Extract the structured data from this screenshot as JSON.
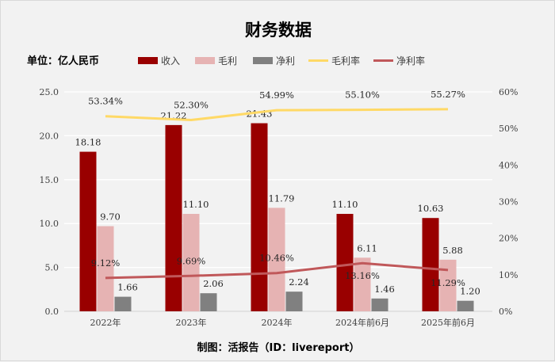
{
  "chart_data": {
    "type": "bar",
    "title": "财务数据",
    "unit_label": "单位：亿人民币",
    "footer": "制图：活报告（ID：livereport）",
    "categories": [
      "2022年",
      "2023年",
      "2024年",
      "2024年前6月",
      "2025年前6月"
    ],
    "left_axis": {
      "range": [
        0,
        25
      ],
      "ticks": [
        "0.0",
        "5.0",
        "10.0",
        "15.0",
        "20.0",
        "25.0"
      ]
    },
    "right_axis": {
      "range": [
        0,
        60
      ],
      "ticks": [
        "0%",
        "10%",
        "20%",
        "30%",
        "40%",
        "50%",
        "60%"
      ]
    },
    "grid": true,
    "legend_position": "top",
    "bar_series": [
      {
        "name": "收入",
        "color": "#990000",
        "values": [
          18.18,
          21.22,
          21.43,
          11.1,
          10.63
        ],
        "labels": [
          "18.18",
          "21.22",
          "21.43",
          "11.10",
          "10.63"
        ]
      },
      {
        "name": "毛利",
        "color": "#e6b3b3",
        "values": [
          9.7,
          11.1,
          11.79,
          6.11,
          5.88
        ],
        "labels": [
          "9.70",
          "11.10",
          "11.79",
          "6.11",
          "5.88"
        ]
      },
      {
        "name": "净利",
        "color": "#808080",
        "values": [
          1.66,
          2.06,
          2.24,
          1.46,
          1.2
        ],
        "labels": [
          "1.66",
          "2.06",
          "2.24",
          "1.46",
          "1.20"
        ]
      }
    ],
    "line_series": [
      {
        "name": "毛利率",
        "color": "#ffd966",
        "values": [
          53.34,
          52.3,
          54.99,
          55.1,
          55.27
        ],
        "labels": [
          "53.34%",
          "52.30%",
          "54.99%",
          "55.10%",
          "55.27%"
        ]
      },
      {
        "name": "净利率",
        "color": "#c0585a",
        "values": [
          9.12,
          9.69,
          10.46,
          13.16,
          11.29
        ],
        "labels": [
          "9.12%",
          "9.69%",
          "10.46%",
          "13.16%",
          "11.29%"
        ]
      }
    ]
  }
}
